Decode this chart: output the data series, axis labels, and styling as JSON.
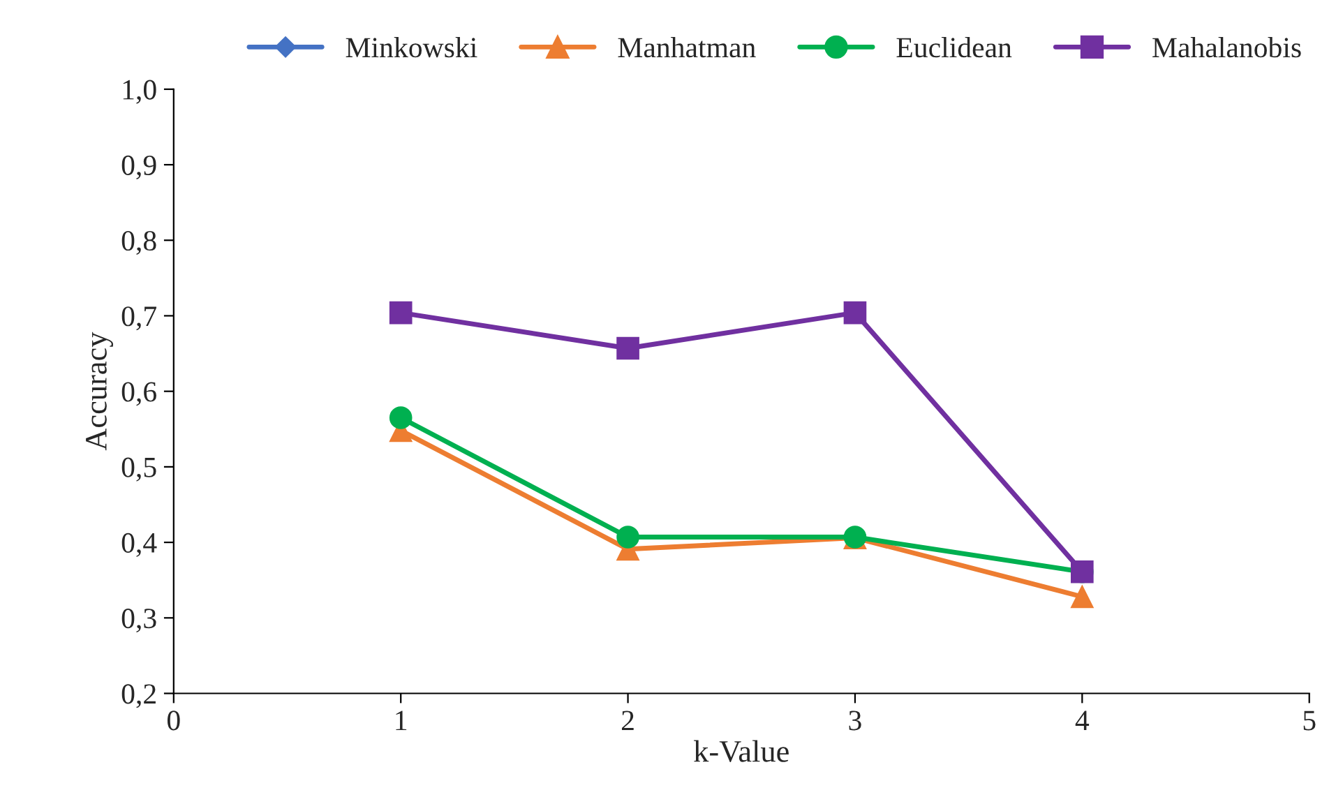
{
  "chart_data": {
    "type": "line",
    "xlabel": "k-Value",
    "ylabel": "Accuracy",
    "x": [
      1,
      2,
      3,
      4
    ],
    "series": [
      {
        "name": "Minkowski",
        "color": "#4472c4",
        "marker": "diamond",
        "values": [
          null,
          null,
          null,
          null
        ]
      },
      {
        "name": "Manhatman",
        "color": "#ed7d31",
        "marker": "triangle",
        "values": [
          0.548,
          0.391,
          0.406,
          0.328
        ]
      },
      {
        "name": "Euclidean",
        "color": "#00b050",
        "marker": "circle",
        "values": [
          0.565,
          0.407,
          0.407,
          0.361
        ]
      },
      {
        "name": "Mahalanobis",
        "color": "#7030a0",
        "marker": "square",
        "values": [
          0.704,
          0.657,
          0.704,
          0.361
        ]
      }
    ],
    "xlim": [
      0,
      5
    ],
    "xticks": [
      0,
      1,
      2,
      3,
      4,
      5
    ],
    "ylim": [
      0.2,
      1.0
    ],
    "yticks": [
      {
        "value": 0.2,
        "label": "0,2"
      },
      {
        "value": 0.3,
        "label": "0,3"
      },
      {
        "value": 0.4,
        "label": "0,4"
      },
      {
        "value": 0.5,
        "label": "0,5"
      },
      {
        "value": 0.6,
        "label": "0,6"
      },
      {
        "value": 0.7,
        "label": "0,7"
      },
      {
        "value": 0.8,
        "label": "0,8"
      },
      {
        "value": 0.9,
        "label": "0,9"
      },
      {
        "value": 1.0,
        "label": "1,0"
      }
    ],
    "grid": false,
    "legend": "top"
  }
}
